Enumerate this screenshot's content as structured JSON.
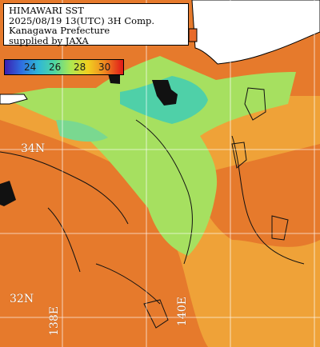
{
  "title": {
    "line1": "HIMAWARI SST",
    "line2": "2025/08/19 13(UTC) 3H Comp.",
    "line3": "Kanagawa Prefecture",
    "line4": "supplied by JAXA"
  },
  "legend": {
    "ticks": [
      "24",
      "26",
      "28",
      "30"
    ],
    "colors": [
      "#3b1fb0",
      "#2f6ee0",
      "#2fb6d8",
      "#4fd6a0",
      "#b0e850",
      "#f0d020",
      "#f08a20",
      "#e01818"
    ]
  },
  "grid_labels": {
    "lat_34": "34N",
    "lat_32": "32N",
    "lon_138": "138E",
    "lon_140": "140E"
  },
  "colors": {
    "land": "#ffffff",
    "warm_sea": "#e8792e",
    "mid_sea": "#f0b040",
    "cool_sea": "#9fe060",
    "cold_sea": "#40c8b0",
    "cloud": "#111111"
  }
}
